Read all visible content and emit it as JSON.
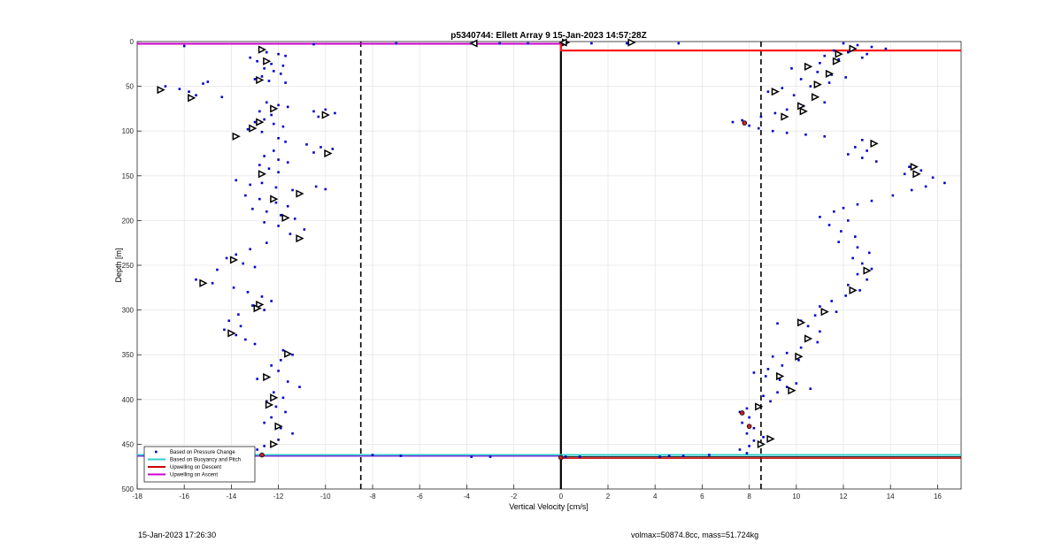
{
  "footer": {
    "timestamp": "15-Jan-2023 17:26:30",
    "volmass": "volmax=50874.8cc, mass=51.724kg"
  },
  "chart_data": {
    "type": "scatter",
    "title": "p5340744: Ellett Array 9 15-Jan-2023 14:57:28Z",
    "xlabel": "Vertical Velocity [cm/s]",
    "ylabel": "Depth [m]",
    "xlim": [
      -18,
      17
    ],
    "ylim": [
      500,
      0
    ],
    "y_reversed": true,
    "grid": true,
    "xticks": [
      -18,
      -16,
      -14,
      -12,
      -10,
      -8,
      -6,
      -4,
      -2,
      0,
      2,
      4,
      6,
      8,
      10,
      12,
      14,
      16
    ],
    "yticks": [
      0,
      50,
      100,
      150,
      200,
      250,
      300,
      350,
      400,
      450,
      500
    ],
    "legend": {
      "position": "bottom-left",
      "entries": [
        {
          "label": "Based on Pressure Change",
          "color": "#0000cc",
          "style": "dot"
        },
        {
          "label": "Based on Buoyancy and Pitch",
          "color": "#33cccc",
          "style": "line"
        },
        {
          "label": "Upwelling on Descent",
          "color": "#cc0000",
          "style": "line"
        },
        {
          "label": "Upwelling on Ascent",
          "color": "#cc00cc",
          "style": "line"
        }
      ]
    },
    "reference_lines": [
      {
        "x": -8.5,
        "style": "dashed",
        "color": "#000000"
      },
      {
        "x": 8.5,
        "style": "dashed",
        "color": "#000000"
      },
      {
        "x": 0,
        "style": "solid",
        "color": "#000000"
      }
    ],
    "pressure_change_points": [
      [
        -12.8,
        10
      ],
      [
        -12.5,
        12
      ],
      [
        -12.0,
        14
      ],
      [
        -11.7,
        16
      ],
      [
        -13.2,
        18
      ],
      [
        -12.9,
        22
      ],
      [
        -12.3,
        25
      ],
      [
        -11.8,
        27
      ],
      [
        -12.6,
        30
      ],
      [
        -12.2,
        33
      ],
      [
        -11.9,
        36
      ],
      [
        -12.7,
        39
      ],
      [
        -13.0,
        42
      ],
      [
        -12.4,
        44
      ],
      [
        -11.7,
        46
      ],
      [
        -16.8,
        50
      ],
      [
        -16.2,
        53
      ],
      [
        -15.8,
        56
      ],
      [
        -15.5,
        60
      ],
      [
        -15.2,
        47
      ],
      [
        -15.0,
        45
      ],
      [
        -14.4,
        62
      ],
      [
        -12.5,
        68
      ],
      [
        -12.0,
        71
      ],
      [
        -11.6,
        73
      ],
      [
        -12.8,
        78
      ],
      [
        -12.3,
        82
      ],
      [
        -10.5,
        78
      ],
      [
        -10.0,
        76
      ],
      [
        -9.6,
        80
      ],
      [
        -10.3,
        84
      ],
      [
        -12.6,
        87
      ],
      [
        -13.0,
        90
      ],
      [
        -12.2,
        92
      ],
      [
        -11.8,
        95
      ],
      [
        -13.3,
        98
      ],
      [
        -12.7,
        101
      ],
      [
        -13.9,
        104
      ],
      [
        -12.0,
        108
      ],
      [
        -11.7,
        112
      ],
      [
        -10.8,
        115
      ],
      [
        -10.2,
        118
      ],
      [
        -9.7,
        120
      ],
      [
        -10.5,
        124
      ],
      [
        -12.2,
        122
      ],
      [
        -12.6,
        128
      ],
      [
        -12.0,
        132
      ],
      [
        -11.6,
        135
      ],
      [
        -12.8,
        138
      ],
      [
        -12.4,
        142
      ],
      [
        -12.0,
        146
      ],
      [
        -13.8,
        155
      ],
      [
        -13.2,
        160
      ],
      [
        -12.7,
        158
      ],
      [
        -12.1,
        163
      ],
      [
        -11.4,
        166
      ],
      [
        -10.4,
        162
      ],
      [
        -10.0,
        165
      ],
      [
        -13.4,
        172
      ],
      [
        -12.8,
        176
      ],
      [
        -12.1,
        180
      ],
      [
        -11.6,
        184
      ],
      [
        -13.1,
        187
      ],
      [
        -12.5,
        190
      ],
      [
        -11.9,
        194
      ],
      [
        -11.3,
        198
      ],
      [
        -12.6,
        202
      ],
      [
        -12.0,
        206
      ],
      [
        -10.9,
        210
      ],
      [
        -11.5,
        215
      ],
      [
        -12.5,
        225
      ],
      [
        -13.2,
        232
      ],
      [
        -13.8,
        238
      ],
      [
        -14.2,
        242
      ],
      [
        -13.5,
        248
      ],
      [
        -13.0,
        252
      ],
      [
        -14.6,
        255
      ],
      [
        -15.5,
        266
      ],
      [
        -14.8,
        270
      ],
      [
        -13.9,
        275
      ],
      [
        -13.3,
        280
      ],
      [
        -12.7,
        285
      ],
      [
        -12.3,
        290
      ],
      [
        -13.1,
        295
      ],
      [
        -12.6,
        300
      ],
      [
        -13.7,
        305
      ],
      [
        -14.1,
        312
      ],
      [
        -13.6,
        318
      ],
      [
        -14.3,
        322
      ],
      [
        -13.8,
        328
      ],
      [
        -13.4,
        333
      ],
      [
        -13.0,
        338
      ],
      [
        -11.8,
        345
      ],
      [
        -11.4,
        350
      ],
      [
        -11.9,
        356
      ],
      [
        -12.3,
        362
      ],
      [
        -12.0,
        368
      ],
      [
        -12.6,
        373
      ],
      [
        -12.9,
        377
      ],
      [
        -11.6,
        380
      ],
      [
        -11.1,
        386
      ],
      [
        -12.2,
        392
      ],
      [
        -11.8,
        398
      ],
      [
        -12.5,
        402
      ],
      [
        -12.1,
        408
      ],
      [
        -11.7,
        414
      ],
      [
        -12.3,
        420
      ],
      [
        -12.6,
        426
      ],
      [
        -11.9,
        432
      ],
      [
        -11.4,
        438
      ],
      [
        -12.0,
        445
      ],
      [
        -12.6,
        452
      ],
      [
        -12.9,
        456
      ],
      [
        -12.7,
        461
      ],
      [
        -16.0,
        5
      ],
      [
        -10.5,
        3
      ],
      [
        -7.0,
        2
      ],
      [
        -3.8,
        2
      ],
      [
        -2.6,
        2
      ],
      [
        -1.4,
        2
      ],
      [
        0.2,
        2
      ],
      [
        1.3,
        2
      ],
      [
        2.8,
        2
      ],
      [
        5.0,
        2
      ],
      [
        12.0,
        2
      ],
      [
        12.6,
        4
      ],
      [
        13.2,
        6
      ],
      [
        13.8,
        8
      ],
      [
        11.6,
        10
      ],
      [
        12.2,
        12
      ],
      [
        13.0,
        14
      ],
      [
        11.2,
        16
      ],
      [
        12.8,
        18
      ],
      [
        11.8,
        20
      ],
      [
        11.0,
        24
      ],
      [
        10.4,
        28
      ],
      [
        9.8,
        30
      ],
      [
        10.9,
        34
      ],
      [
        11.5,
        37
      ],
      [
        12.1,
        40
      ],
      [
        10.2,
        42
      ],
      [
        11.4,
        46
      ],
      [
        10.6,
        50
      ],
      [
        9.4,
        52
      ],
      [
        8.8,
        56
      ],
      [
        9.9,
        60
      ],
      [
        10.7,
        64
      ],
      [
        11.2,
        68
      ],
      [
        10.3,
        72
      ],
      [
        9.6,
        76
      ],
      [
        9.1,
        80
      ],
      [
        8.5,
        84
      ],
      [
        7.7,
        88
      ],
      [
        7.3,
        90
      ],
      [
        8.0,
        94
      ],
      [
        8.4,
        97
      ],
      [
        9.0,
        100
      ],
      [
        9.6,
        102
      ],
      [
        10.4,
        104
      ],
      [
        11.2,
        106
      ],
      [
        12.8,
        110
      ],
      [
        13.3,
        114
      ],
      [
        12.5,
        118
      ],
      [
        13.0,
        122
      ],
      [
        12.2,
        126
      ],
      [
        12.8,
        130
      ],
      [
        13.4,
        134
      ],
      [
        14.8,
        140
      ],
      [
        15.3,
        144
      ],
      [
        14.6,
        148
      ],
      [
        15.8,
        152
      ],
      [
        16.3,
        158
      ],
      [
        15.5,
        162
      ],
      [
        14.9,
        166
      ],
      [
        14.1,
        172
      ],
      [
        13.2,
        178
      ],
      [
        12.6,
        182
      ],
      [
        12.0,
        186
      ],
      [
        11.6,
        190
      ],
      [
        11.0,
        196
      ],
      [
        12.2,
        200
      ],
      [
        11.4,
        205
      ],
      [
        11.9,
        212
      ],
      [
        12.5,
        218
      ],
      [
        11.8,
        224
      ],
      [
        12.6,
        230
      ],
      [
        13.1,
        236
      ],
      [
        12.4,
        242
      ],
      [
        12.8,
        248
      ],
      [
        13.2,
        254
      ],
      [
        12.6,
        260
      ],
      [
        13.0,
        266
      ],
      [
        12.2,
        272
      ],
      [
        12.7,
        278
      ],
      [
        12.1,
        284
      ],
      [
        11.5,
        290
      ],
      [
        11.0,
        296
      ],
      [
        11.7,
        302
      ],
      [
        10.8,
        306
      ],
      [
        10.2,
        312
      ],
      [
        9.2,
        315
      ],
      [
        10.5,
        318
      ],
      [
        11.0,
        324
      ],
      [
        10.4,
        330
      ],
      [
        10.9,
        336
      ],
      [
        10.2,
        342
      ],
      [
        9.6,
        348
      ],
      [
        9.0,
        352
      ],
      [
        10.1,
        356
      ],
      [
        9.4,
        362
      ],
      [
        8.8,
        366
      ],
      [
        8.2,
        370
      ],
      [
        8.7,
        374
      ],
      [
        9.3,
        378
      ],
      [
        10.0,
        382
      ],
      [
        9.6,
        386
      ],
      [
        10.6,
        388
      ],
      [
        9.2,
        392
      ],
      [
        8.6,
        396
      ],
      [
        8.9,
        402
      ],
      [
        8.3,
        406
      ],
      [
        7.9,
        410
      ],
      [
        7.6,
        414
      ],
      [
        8.0,
        420
      ],
      [
        7.7,
        426
      ],
      [
        8.2,
        432
      ],
      [
        7.9,
        438
      ],
      [
        8.6,
        442
      ],
      [
        8.2,
        446
      ],
      [
        8.0,
        452
      ],
      [
        7.6,
        456
      ],
      [
        7.9,
        460
      ],
      [
        -8.0,
        462
      ],
      [
        -6.8,
        463
      ],
      [
        -3.8,
        464
      ],
      [
        -3.0,
        464
      ],
      [
        0.2,
        464
      ],
      [
        0.8,
        464
      ],
      [
        4.2,
        464
      ],
      [
        4.6,
        463
      ],
      [
        5.2,
        463
      ],
      [
        6.3,
        462
      ]
    ],
    "descent_markers": [
      [
        -17.0,
        54
      ],
      [
        -15.7,
        63
      ],
      [
        -12.7,
        9
      ],
      [
        -12.5,
        22
      ],
      [
        -12.8,
        43
      ],
      [
        -12.2,
        75
      ],
      [
        -10.0,
        82
      ],
      [
        -12.8,
        90
      ],
      [
        -13.1,
        97
      ],
      [
        -13.8,
        106
      ],
      [
        -9.9,
        125
      ],
      [
        -12.7,
        148
      ],
      [
        -11.1,
        170
      ],
      [
        -12.2,
        176
      ],
      [
        -11.7,
        197
      ],
      [
        -11.1,
        220
      ],
      [
        -13.9,
        244
      ],
      [
        -15.2,
        270
      ],
      [
        -12.8,
        294
      ],
      [
        -12.9,
        298
      ],
      [
        -14.0,
        326
      ],
      [
        -11.6,
        349
      ],
      [
        -12.5,
        375
      ],
      [
        -12.2,
        398
      ],
      [
        -12.4,
        406
      ],
      [
        -12.0,
        430
      ],
      [
        -12.2,
        450
      ],
      [
        3.0,
        1
      ],
      [
        0.2,
        1
      ],
      [
        12.4,
        8
      ],
      [
        11.8,
        14
      ],
      [
        11.7,
        22
      ],
      [
        10.5,
        28
      ],
      [
        11.4,
        36
      ],
      [
        10.9,
        48
      ],
      [
        9.1,
        56
      ],
      [
        10.8,
        62
      ],
      [
        10.2,
        72
      ],
      [
        10.3,
        78
      ],
      [
        9.5,
        84
      ],
      [
        13.3,
        114
      ],
      [
        15.0,
        140
      ],
      [
        15.1,
        148
      ],
      [
        13.0,
        256
      ],
      [
        12.4,
        278
      ],
      [
        11.2,
        302
      ],
      [
        10.2,
        314
      ],
      [
        10.5,
        332
      ],
      [
        10.1,
        352
      ],
      [
        9.3,
        374
      ],
      [
        9.8,
        390
      ],
      [
        8.4,
        408
      ],
      [
        8.9,
        444
      ],
      [
        8.5,
        450
      ]
    ],
    "ascent_markers": [
      [
        -3.7,
        2
      ],
      [
        0.1,
        1
      ]
    ],
    "buoyancy_pitch_red_points": [
      [
        7.8,
        91
      ],
      [
        7.7,
        415
      ],
      [
        8.0,
        430
      ],
      [
        -12.7,
        462
      ],
      [
        0,
        465
      ]
    ],
    "ascent_line": {
      "depth": 2.5,
      "from": -18,
      "to": 0
    },
    "descent_line": {
      "points": [
        [
          0,
          0
        ],
        [
          0,
          10
        ],
        [
          17,
          10
        ]
      ]
    },
    "descent_bottom_line": {
      "depth": 464,
      "from": 0,
      "to": 17
    },
    "buoyancy_line": {
      "depth": 462,
      "from": -18,
      "to": 17
    },
    "bottom_black_line": {
      "depth": 463,
      "from": 0,
      "to": 17
    }
  }
}
